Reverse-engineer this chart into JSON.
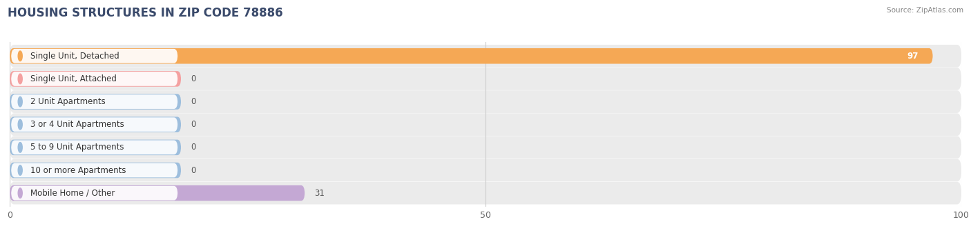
{
  "title": "HOUSING STRUCTURES IN ZIP CODE 78886",
  "source": "Source: ZipAtlas.com",
  "categories": [
    "Single Unit, Detached",
    "Single Unit, Attached",
    "2 Unit Apartments",
    "3 or 4 Unit Apartments",
    "5 to 9 Unit Apartments",
    "10 or more Apartments",
    "Mobile Home / Other"
  ],
  "values": [
    97,
    0,
    0,
    0,
    0,
    0,
    31
  ],
  "bar_colors": [
    "#F5A855",
    "#F4A0A0",
    "#9DBEDD",
    "#9DBEDD",
    "#9DBEDD",
    "#9DBEDD",
    "#C4A8D4"
  ],
  "stub_values": [
    18,
    18,
    18,
    18,
    18,
    18,
    31
  ],
  "row_bg_color": "#EBEBEB",
  "xlim": [
    0,
    100
  ],
  "xticks": [
    0,
    50,
    100
  ],
  "title_fontsize": 12,
  "label_fontsize": 8.5,
  "value_fontsize": 8.5,
  "background_color": "#ffffff",
  "grid_color": "#cccccc",
  "title_color": "#3a4a6b"
}
